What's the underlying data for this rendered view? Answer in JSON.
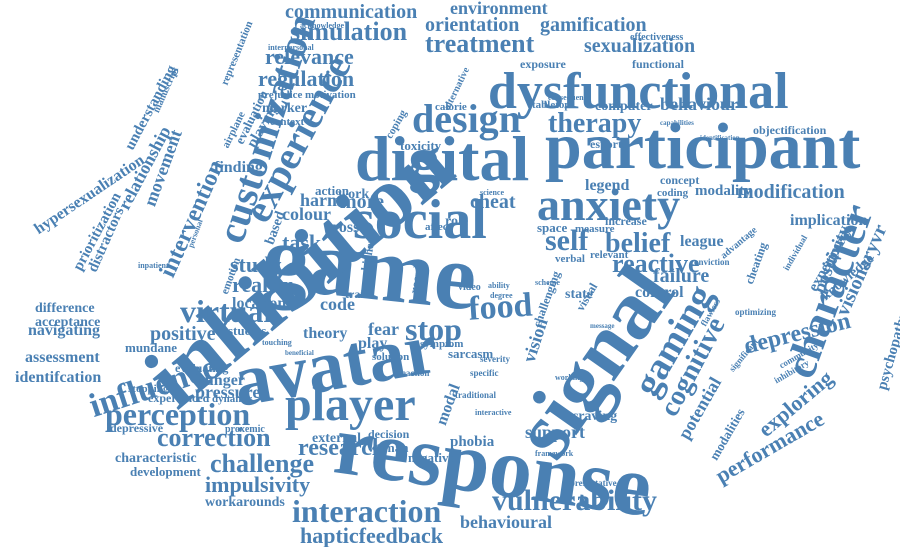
{
  "color": "#4a80b3",
  "words": [
    {
      "text": "game",
      "weight": 1.0
    },
    {
      "text": "inhibition",
      "weight": 0.95
    },
    {
      "text": "signal",
      "weight": 0.9
    },
    {
      "text": "response",
      "weight": 0.88
    },
    {
      "text": "avatar",
      "weight": 0.85
    },
    {
      "text": "participant",
      "weight": 0.8
    },
    {
      "text": "digital",
      "weight": 0.75
    },
    {
      "text": "dysfunctional",
      "weight": 0.72
    },
    {
      "text": "social",
      "weight": 0.68
    },
    {
      "text": "anxiety",
      "weight": 0.6
    },
    {
      "text": "player",
      "weight": 0.6
    },
    {
      "text": "character",
      "weight": 0.55
    },
    {
      "text": "customization",
      "weight": 0.55
    },
    {
      "text": "experience",
      "weight": 0.55
    },
    {
      "text": "design",
      "weight": 0.5
    },
    {
      "text": "gaming",
      "weight": 0.5
    },
    {
      "text": "vulnerability",
      "weight": 0.45
    },
    {
      "text": "influence",
      "weight": 0.42
    },
    {
      "text": "interaction",
      "weight": 0.42
    },
    {
      "text": "perception",
      "weight": 0.4
    },
    {
      "text": "virtual",
      "weight": 0.4
    },
    {
      "text": "food",
      "weight": 0.4
    },
    {
      "text": "stop",
      "weight": 0.4
    },
    {
      "text": "self",
      "weight": 0.38
    },
    {
      "text": "cognitive",
      "weight": 0.38
    },
    {
      "text": "belief",
      "weight": 0.35
    },
    {
      "text": "therapy",
      "weight": 0.35
    },
    {
      "text": "treatment",
      "weight": 0.33
    },
    {
      "text": "simulation",
      "weight": 0.33
    },
    {
      "text": "challenge",
      "weight": 0.33
    },
    {
      "text": "correction",
      "weight": 0.33
    },
    {
      "text": "research",
      "weight": 0.32
    },
    {
      "text": "reactive",
      "weight": 0.32
    },
    {
      "text": "performance",
      "weight": 0.3
    },
    {
      "text": "depression",
      "weight": 0.3
    },
    {
      "text": "exploring",
      "weight": 0.3
    },
    {
      "text": "hapticfeedback",
      "weight": 0.3
    },
    {
      "text": "intervention",
      "weight": 0.3
    },
    {
      "text": "impulsivity",
      "weight": 0.28
    },
    {
      "text": "regulation",
      "weight": 0.28
    },
    {
      "text": "relevance",
      "weight": 0.28
    },
    {
      "text": "sexualization",
      "weight": 0.28
    },
    {
      "text": "orientation",
      "weight": 0.28
    },
    {
      "text": "gamification",
      "weight": 0.28
    },
    {
      "text": "communication",
      "weight": 0.28
    },
    {
      "text": "environment",
      "weight": 0.26
    },
    {
      "text": "modification",
      "weight": 0.26
    },
    {
      "text": "behavioural",
      "weight": 0.26
    },
    {
      "text": "behaviour",
      "weight": 0.24
    },
    {
      "text": "positivity",
      "weight": 0.24
    },
    {
      "text": "visionaryvr",
      "weight": 0.24
    },
    {
      "text": "reality",
      "weight": 0.24
    },
    {
      "text": "study",
      "weight": 0.24
    },
    {
      "text": "potential",
      "weight": 0.24
    },
    {
      "text": "failure",
      "weight": 0.24
    },
    {
      "text": "positive",
      "weight": 0.22
    },
    {
      "text": "task",
      "weight": 0.22
    },
    {
      "text": "movement",
      "weight": 0.22
    },
    {
      "text": "relationship",
      "weight": 0.22
    },
    {
      "text": "hypersexualization",
      "weight": 0.22
    },
    {
      "text": "understanding",
      "weight": 0.2
    },
    {
      "text": "distractors",
      "weight": 0.2
    },
    {
      "text": "prioritization",
      "weight": 0.2
    },
    {
      "text": "implication",
      "weight": 0.2
    },
    {
      "text": "experiment",
      "weight": 0.2
    },
    {
      "text": "modality",
      "weight": 0.2
    },
    {
      "text": "psychopathy",
      "weight": 0.18
    },
    {
      "text": "knowledge",
      "weight": 0.18
    },
    {
      "text": "navigating",
      "weight": 0.2
    },
    {
      "text": "assessment",
      "weight": 0.2
    },
    {
      "text": "identifcation",
      "weight": 0.2
    },
    {
      "text": "difference",
      "weight": 0.18
    },
    {
      "text": "acceptance",
      "weight": 0.18
    },
    {
      "text": "mundane",
      "weight": 0.16
    },
    {
      "text": "pressure",
      "weight": 0.2
    },
    {
      "text": "hunger",
      "weight": 0.2
    },
    {
      "text": "location",
      "weight": 0.2
    },
    {
      "text": "theory",
      "weight": 0.2
    },
    {
      "text": "cheat",
      "weight": 0.22
    },
    {
      "text": "more",
      "weight": 0.22
    },
    {
      "text": "harm",
      "weight": 0.2
    },
    {
      "text": "colour",
      "weight": 0.2
    },
    {
      "text": "cross",
      "weight": 0.2
    },
    {
      "text": "work",
      "weight": 0.18
    },
    {
      "text": "action",
      "weight": 0.16
    },
    {
      "text": "based",
      "weight": 0.18
    },
    {
      "text": "code",
      "weight": 0.2
    },
    {
      "text": "fear",
      "weight": 0.2
    },
    {
      "text": "play",
      "weight": 0.18
    },
    {
      "text": "support",
      "weight": 0.22
    },
    {
      "text": "external",
      "weight": 0.2
    },
    {
      "text": "decision",
      "weight": 0.16
    },
    {
      "text": "woman",
      "weight": 0.16
    },
    {
      "text": "negative",
      "weight": 0.16
    },
    {
      "text": "phobia",
      "weight": 0.18
    },
    {
      "text": "modal",
      "weight": 0.2
    },
    {
      "text": "vision",
      "weight": 0.22
    },
    {
      "text": "legend",
      "weight": 0.2
    },
    {
      "text": "league",
      "weight": 0.2
    },
    {
      "text": "control",
      "weight": 0.2
    },
    {
      "text": "state",
      "weight": 0.18
    },
    {
      "text": "visual",
      "weight": 0.16
    },
    {
      "text": "challenging",
      "weight": 0.16
    },
    {
      "text": "sarcasm",
      "weight": 0.16
    },
    {
      "text": "symptom",
      "weight": 0.14
    },
    {
      "text": "solution",
      "weight": 0.14
    },
    {
      "text": "craving",
      "weight": 0.16
    },
    {
      "text": "modalities",
      "weight": 0.16
    },
    {
      "text": "computer",
      "weight": 0.18
    },
    {
      "text": "esports",
      "weight": 0.16
    },
    {
      "text": "tabletop",
      "weight": 0.14
    },
    {
      "text": "calorie",
      "weight": 0.14
    },
    {
      "text": "exposure",
      "weight": 0.16
    },
    {
      "text": "functional",
      "weight": 0.16
    },
    {
      "text": "effectiveness",
      "weight": 0.14
    },
    {
      "text": "objectification",
      "weight": 0.16
    },
    {
      "text": "concept",
      "weight": 0.14
    },
    {
      "text": "coding",
      "weight": 0.14
    },
    {
      "text": "finding",
      "weight": 0.2
    },
    {
      "text": "playing",
      "weight": 0.18
    },
    {
      "text": "evaluation",
      "weight": 0.16
    },
    {
      "text": "marker",
      "weight": 0.16
    },
    {
      "text": "motivation",
      "weight": 0.14
    },
    {
      "text": "prejudice",
      "weight": 0.14
    },
    {
      "text": "context",
      "weight": 0.14
    },
    {
      "text": "representation",
      "weight": 0.14
    },
    {
      "text": "acknowledge",
      "weight": 0.12
    },
    {
      "text": "interpersonal",
      "weight": 0.12
    },
    {
      "text": "airplane",
      "weight": 0.14
    },
    {
      "text": "manuscript",
      "weight": 0.12
    },
    {
      "text": "toxicity",
      "weight": 0.16
    },
    {
      "text": "coping",
      "weight": 0.14
    },
    {
      "text": "alternative",
      "weight": 0.14
    },
    {
      "text": "role",
      "weight": 0.16
    },
    {
      "text": "affect",
      "weight": 0.14
    },
    {
      "text": "space",
      "weight": 0.16
    },
    {
      "text": "measure",
      "weight": 0.14
    },
    {
      "text": "increase",
      "weight": 0.14
    },
    {
      "text": "relevant",
      "weight": 0.14
    },
    {
      "text": "verbal",
      "weight": 0.14
    },
    {
      "text": "result",
      "weight": 0.16
    },
    {
      "text": "higher",
      "weight": 0.14
    },
    {
      "text": "trait",
      "weight": 0.14
    },
    {
      "text": "studies",
      "weight": 0.16
    },
    {
      "text": "emotion",
      "weight": 0.14
    },
    {
      "text": "evaluating",
      "weight": 0.14
    },
    {
      "text": "experienced",
      "weight": 0.14
    },
    {
      "text": "dynamic",
      "weight": 0.14
    },
    {
      "text": "stopping",
      "weight": 0.14
    },
    {
      "text": "depressive",
      "weight": 0.14
    },
    {
      "text": "proxemic",
      "weight": 0.12
    },
    {
      "text": "characteristic",
      "weight": 0.16
    },
    {
      "text": "development",
      "weight": 0.16
    },
    {
      "text": "workarounds",
      "weight": 0.16
    },
    {
      "text": "video",
      "weight": 0.14
    },
    {
      "text": "specific",
      "weight": 0.12
    },
    {
      "text": "representative",
      "weight": 0.12
    },
    {
      "text": "framework",
      "weight": 0.12
    },
    {
      "text": "traditional",
      "weight": 0.12
    },
    {
      "text": "reaction",
      "weight": 0.12
    },
    {
      "text": "severity",
      "weight": 0.12
    },
    {
      "text": "conviction",
      "weight": 0.12
    },
    {
      "text": "advantage",
      "weight": 0.12
    },
    {
      "text": "cheating",
      "weight": 0.14
    },
    {
      "text": "individual",
      "weight": 0.12
    },
    {
      "text": "flawless",
      "weight": 0.12
    },
    {
      "text": "optimizing",
      "weight": 0.12
    },
    {
      "text": "inhibitory",
      "weight": 0.12
    },
    {
      "text": "community",
      "weight": 0.12
    },
    {
      "text": "significant",
      "weight": 0.12
    },
    {
      "text": "working",
      "weight": 0.12
    },
    {
      "text": "consequence",
      "weight": 0.12
    },
    {
      "text": "capabilities",
      "weight": 0.1
    },
    {
      "text": "identification",
      "weight": 0.1
    },
    {
      "text": "interactive",
      "weight": 0.12
    },
    {
      "text": "inpatient",
      "weight": 0.1
    },
    {
      "text": "scheme",
      "weight": 0.1
    },
    {
      "text": "ability",
      "weight": 0.1
    },
    {
      "text": "degree",
      "weight": 0.1
    },
    {
      "text": "science",
      "weight": 0.1
    },
    {
      "text": "message",
      "weight": 0.1
    },
    {
      "text": "personal",
      "weight": 0.1
    },
    {
      "text": "touching",
      "weight": 0.1
    },
    {
      "text": "beneficial",
      "weight": 0.1
    }
  ]
}
